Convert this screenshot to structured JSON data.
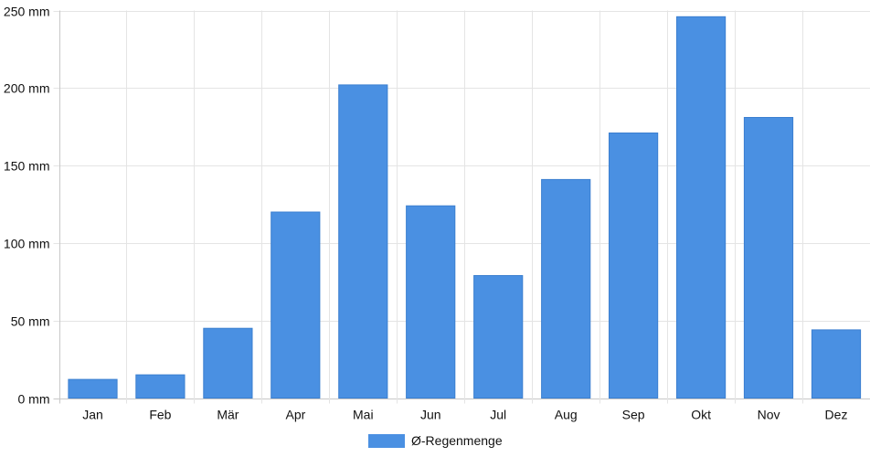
{
  "chart_data": {
    "type": "bar",
    "categories": [
      "Jan",
      "Feb",
      "Mär",
      "Apr",
      "Mai",
      "Jun",
      "Jul",
      "Aug",
      "Sep",
      "Okt",
      "Nov",
      "Dez"
    ],
    "series": [
      {
        "name": "Ø-Regenmenge",
        "values": [
          12,
          15,
          45,
          120,
          202,
          124,
          79,
          141,
          171,
          246,
          181,
          44
        ],
        "color": "#4a90e2"
      }
    ],
    "y_ticks": [
      0,
      50,
      100,
      150,
      200,
      250
    ],
    "y_unit": "mm",
    "ylim": [
      0,
      250
    ],
    "grid": true,
    "legend_position": "bottom-center",
    "title": "",
    "xlabel": "",
    "ylabel": ""
  }
}
